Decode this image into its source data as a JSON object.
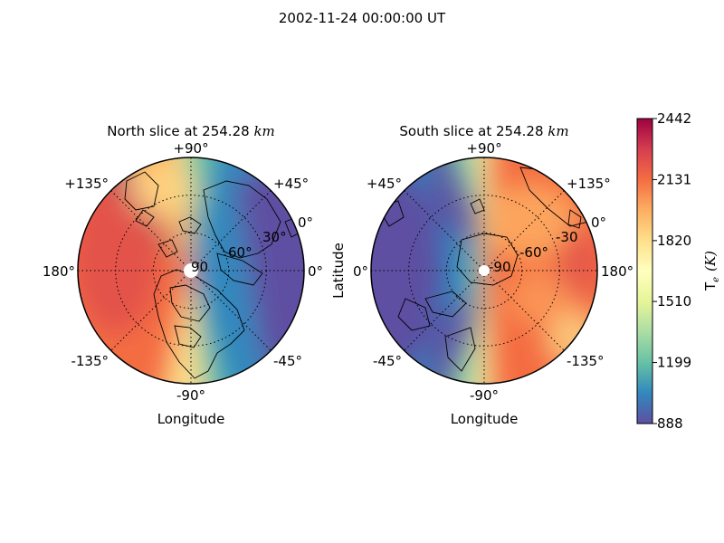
{
  "suptitle": "2002-11-24 00:00:00 UT",
  "chart_data": [
    {
      "type": "heatmap",
      "projection": "polar",
      "title_prefix": "North slice at 254.28 ",
      "title_unit": "km",
      "xlabel": "Longitude",
      "ylabel": "",
      "lon_tick_labels": [
        "+90°",
        "+45°",
        "0°",
        "-45°",
        "-90°",
        "-135°",
        "180°",
        "+135°"
      ],
      "lat_ring_labels": [
        "0°",
        "30°",
        "60°",
        "90"
      ],
      "lat_rings_deg": [
        0,
        30,
        60
      ],
      "pole_latitude": 90,
      "hot_sector": "left (longitudes around 180°)",
      "cool_sector": "right (longitudes around -45° to +45°)"
    },
    {
      "type": "heatmap",
      "projection": "polar",
      "title_prefix": "South slice at 254.28 ",
      "title_unit": "km",
      "xlabel": "Longitude",
      "ylabel": "Latitude",
      "lon_tick_labels": [
        "+90°",
        "+135°",
        "180°",
        "-135°",
        "-90°",
        "-45°",
        "0°",
        "+45°"
      ],
      "lat_ring_labels": [
        "0°",
        "-30",
        "-60°",
        "-90"
      ],
      "lat_rings_deg": [
        0,
        -30,
        -60
      ],
      "pole_latitude": -90,
      "hot_sector": "right (longitudes around 180°)",
      "cool_sector": "left (longitudes around 0°)"
    }
  ],
  "colorbar": {
    "label_base": "T",
    "label_sub": "e",
    "label_unit": "(K)",
    "min": 888,
    "max": 2442,
    "ticks": [
      888,
      1199,
      1510,
      1820,
      2131,
      2442
    ],
    "tick_labels": [
      "888",
      "1199",
      "1510",
      "1820",
      "2131",
      "2442"
    ],
    "colormap": "Spectral_r",
    "colors": [
      "#5e4fa2",
      "#3288bd",
      "#66c2a5",
      "#abdda4",
      "#e6f598",
      "#ffffbf",
      "#fee08b",
      "#fdae61",
      "#f46d43",
      "#d53e4f",
      "#9e0142"
    ]
  }
}
